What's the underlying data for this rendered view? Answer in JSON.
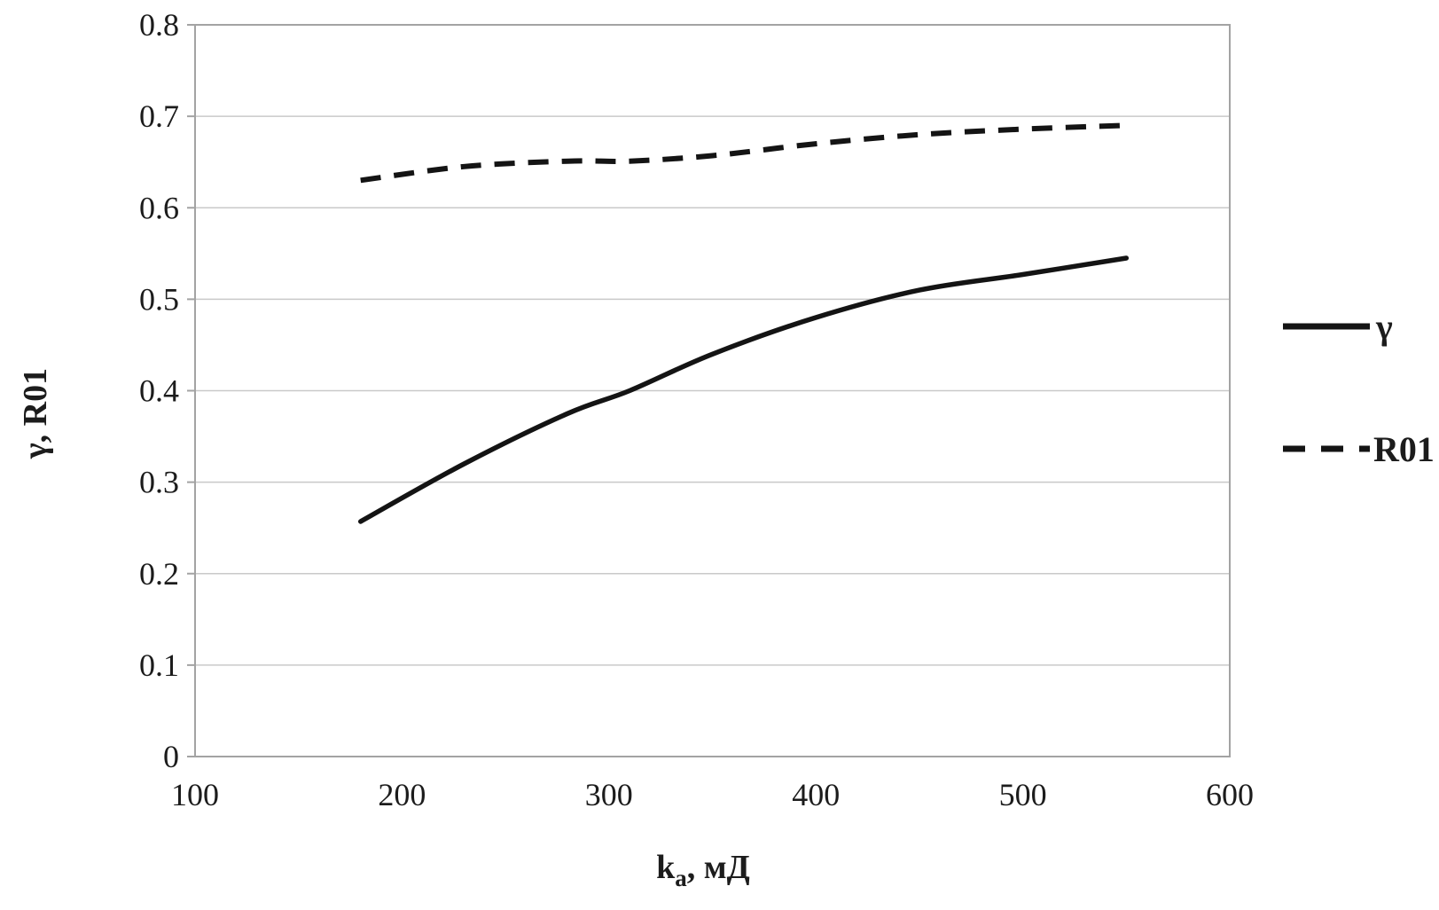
{
  "figure": {
    "background": "#ffffff",
    "text_color": "#1c1c1c",
    "gridline_color": "#c9c9c9",
    "axis_border_color": "#a3a3a3",
    "series_color": "#141414"
  },
  "chart_data": {
    "type": "line",
    "xlabel": "kₐ, мД",
    "xlabel_parts": {
      "base": "k",
      "sub": "a",
      "rest": ", мД"
    },
    "ylabel": "γ, R01",
    "xlim": [
      100,
      600
    ],
    "ylim": [
      0,
      0.8
    ],
    "x_ticks": [
      100,
      200,
      300,
      400,
      500,
      600
    ],
    "y_ticks": [
      0,
      0.1,
      0.2,
      0.3,
      0.4,
      0.5,
      0.6,
      0.7,
      0.8
    ],
    "grid": "horizontal",
    "legend_position": "right",
    "x": [
      180,
      230,
      280,
      310,
      350,
      400,
      450,
      500,
      550
    ],
    "series": [
      {
        "name": "γ",
        "style": "solid",
        "values": [
          0.257,
          0.32,
          0.375,
          0.4,
          0.44,
          0.48,
          0.51,
          0.527,
          0.545
        ]
      },
      {
        "name": "R01",
        "style": "dashed",
        "values": [
          0.63,
          0.645,
          0.651,
          0.651,
          0.657,
          0.67,
          0.68,
          0.686,
          0.69
        ]
      }
    ]
  }
}
